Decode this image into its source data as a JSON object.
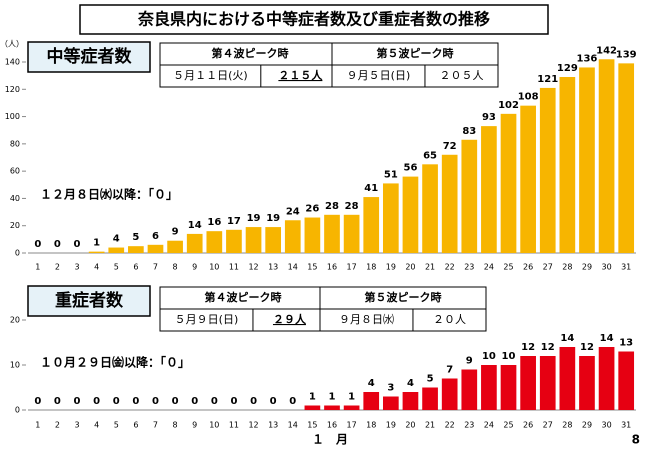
{
  "title": "奈良県内における中等症者数及び重症者数の推移",
  "xlabel": "１　月",
  "page_number": "8",
  "chart_data": [
    {
      "type": "bar",
      "title": "中等症者数",
      "y_unit": "（人）",
      "categories": [
        "1",
        "2",
        "3",
        "4",
        "5",
        "6",
        "7",
        "8",
        "9",
        "10",
        "11",
        "12",
        "13",
        "14",
        "15",
        "16",
        "17",
        "18",
        "19",
        "20",
        "21",
        "22",
        "23",
        "24",
        "25",
        "26",
        "27",
        "28",
        "29",
        "30",
        "31"
      ],
      "values": [
        0,
        0,
        0,
        1,
        4,
        5,
        6,
        9,
        14,
        16,
        17,
        19,
        19,
        24,
        26,
        28,
        28,
        41,
        51,
        56,
        65,
        72,
        83,
        93,
        102,
        108,
        121,
        129,
        136,
        142,
        139
      ],
      "color": "#f7b500",
      "ylim": [
        0,
        140
      ],
      "yticks": [
        0,
        20,
        40,
        60,
        80,
        100,
        120,
        140
      ],
      "peaks": [
        {
          "label": "第４波ピーク時",
          "date": "５月１１日(火)",
          "value": "２１５人"
        },
        {
          "label": "第５波ピーク時",
          "date": "９月５日(日)",
          "value": "２０５人"
        }
      ],
      "note": "１２月８日㈬以降：「０」"
    },
    {
      "type": "bar",
      "title": "重症者数",
      "categories": [
        "1",
        "2",
        "3",
        "4",
        "5",
        "6",
        "7",
        "8",
        "9",
        "10",
        "11",
        "12",
        "13",
        "14",
        "15",
        "16",
        "17",
        "18",
        "19",
        "20",
        "21",
        "22",
        "23",
        "24",
        "25",
        "26",
        "27",
        "28",
        "29",
        "30",
        "31"
      ],
      "values": [
        0,
        0,
        0,
        0,
        0,
        0,
        0,
        0,
        0,
        0,
        0,
        0,
        0,
        0,
        1,
        1,
        1,
        4,
        3,
        4,
        5,
        7,
        9,
        10,
        10,
        12,
        12,
        14,
        12,
        14,
        13
      ],
      "color": "#e60012",
      "ylim": [
        0,
        20
      ],
      "yticks": [
        0,
        10,
        20
      ],
      "peaks": [
        {
          "label": "第４波ピーク時",
          "date": "５月９日(日)",
          "value": "２９人"
        },
        {
          "label": "第５波ピーク時",
          "date": "９月８日㈬",
          "value": "２０人"
        }
      ],
      "note": "１０月２９日㈮以降：「０」"
    }
  ]
}
